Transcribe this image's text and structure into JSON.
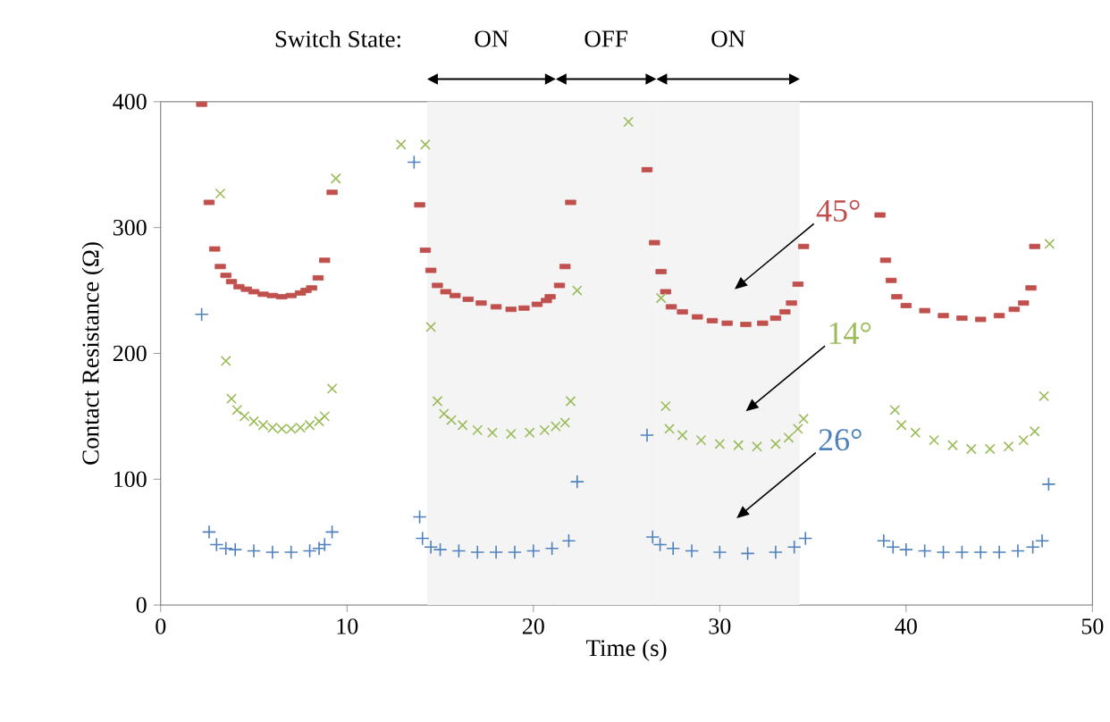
{
  "chart_data": {
    "type": "scatter",
    "xlabel": "Time (s)",
    "ylabel": "Contact Resistance (Ω)",
    "xlim": [
      0,
      50
    ],
    "ylim": [
      0,
      400
    ],
    "xticks": [
      0,
      10,
      20,
      30,
      40,
      50
    ],
    "yticks": [
      0,
      100,
      200,
      300,
      400
    ],
    "annotations": [
      "Switch State:"
    ],
    "bands": [
      {
        "axis": "x",
        "from": 14.3,
        "to": 21.2,
        "label": "ON"
      },
      {
        "axis": "x",
        "from": 21.2,
        "to": 26.6,
        "label": "OFF"
      },
      {
        "axis": "x",
        "from": 26.6,
        "to": 34.3,
        "label": "ON"
      }
    ],
    "series": [
      {
        "name": "45°",
        "color": "#c0504d",
        "marker": "square",
        "x": [
          2.2,
          2.6,
          2.9,
          3.2,
          3.5,
          3.8,
          4.2,
          4.6,
          5.0,
          5.5,
          6.0,
          6.5,
          7.0,
          7.5,
          7.8,
          8.1,
          8.45,
          8.8,
          9.2,
          13.9,
          14.2,
          14.5,
          14.85,
          15.3,
          15.8,
          16.5,
          17.2,
          18.0,
          18.8,
          19.5,
          20.2,
          20.7,
          20.9,
          21.4,
          21.7,
          22.0,
          26.1,
          26.5,
          26.85,
          27.1,
          27.4,
          28,
          28.8,
          29.6,
          30.4,
          31.4,
          32.3,
          33,
          33.5,
          33.85,
          34.2,
          34.5,
          38.6,
          38.9,
          39.2,
          39.5,
          40,
          41,
          42,
          43,
          44,
          45,
          45.8,
          46.3,
          46.7,
          46.9
        ],
        "values": [
          398,
          320,
          283,
          269,
          262,
          257,
          253,
          251,
          249,
          247,
          246,
          245,
          246,
          248,
          250,
          252,
          260,
          274,
          328,
          318,
          282,
          266,
          254,
          249,
          246,
          243,
          240,
          237,
          235,
          236,
          239,
          242,
          245,
          254,
          269,
          320,
          346,
          288,
          265,
          249,
          237,
          233,
          229,
          226,
          224,
          223,
          224,
          228,
          233,
          240,
          255,
          285,
          310,
          274,
          258,
          245,
          238,
          234,
          230,
          228,
          227,
          230,
          235,
          240,
          252,
          285
        ]
      },
      {
        "name": "14°",
        "color": "#9bbb59",
        "marker": "cross",
        "x": [
          3.2,
          3.5,
          3.8,
          4.1,
          4.5,
          5,
          5.5,
          6,
          6.5,
          7,
          7.5,
          8,
          8.5,
          8.8,
          9.2,
          9.4,
          12.9,
          14.2,
          14.5,
          14.85,
          15.2,
          15.6,
          16.2,
          17,
          17.8,
          18.8,
          19.8,
          20.6,
          21.2,
          21.7,
          22.0,
          22.35,
          25.1,
          26.85,
          27.1,
          27.3,
          28,
          29,
          30,
          31,
          32,
          33,
          33.7,
          34.2,
          34.5,
          39.4,
          39.75,
          40.5,
          41.5,
          42.5,
          43.5,
          44.5,
          45.5,
          46.3,
          46.9,
          47.4,
          47.7
        ],
        "values": [
          327,
          194,
          164,
          155,
          150,
          146,
          143,
          141,
          140,
          140,
          141,
          143,
          146,
          150,
          172,
          339,
          366,
          366,
          221,
          162,
          152,
          147,
          143,
          139,
          137,
          136,
          137,
          139,
          142,
          145,
          162,
          250,
          384,
          244,
          158,
          140,
          135,
          131,
          128,
          127,
          126,
          128,
          133,
          140,
          148,
          155,
          143,
          137,
          131,
          127,
          124,
          124,
          126,
          131,
          138,
          166,
          287
        ]
      },
      {
        "name": "26°",
        "color": "#4f81bd",
        "marker": "plus",
        "x": [
          2.2,
          2.6,
          3.0,
          3.5,
          4,
          5,
          6,
          7,
          8,
          8.5,
          8.8,
          9.2,
          13.6,
          13.9,
          14.05,
          14.5,
          15,
          16,
          17,
          18,
          19,
          20,
          21,
          21.9,
          22.35,
          26.1,
          26.4,
          26.8,
          27.5,
          28.5,
          30,
          31.5,
          33,
          34,
          34.6,
          38.8,
          39.3,
          40,
          41,
          42,
          43,
          44,
          45,
          46,
          46.8,
          47.3,
          47.65
        ],
        "values": [
          231,
          58,
          48,
          45,
          44,
          43,
          42,
          42,
          43,
          45,
          48,
          58,
          352,
          70,
          53,
          46,
          44,
          43,
          42,
          42,
          42,
          43,
          45,
          51,
          98,
          135,
          54,
          48,
          45,
          43,
          42,
          41,
          42,
          46,
          53,
          51,
          46,
          44,
          43,
          42,
          42,
          42,
          42,
          43,
          46,
          51,
          96
        ]
      }
    ]
  }
}
